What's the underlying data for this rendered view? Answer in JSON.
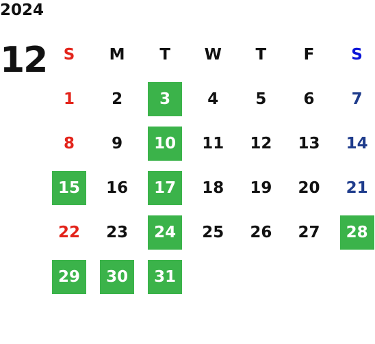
{
  "year": "2024",
  "month": "12",
  "weekdays": [
    "S",
    "M",
    "T",
    "W",
    "T",
    "F",
    "S"
  ],
  "weeks": [
    [
      {
        "day": 1,
        "highlight": false
      },
      {
        "day": 2,
        "highlight": false
      },
      {
        "day": 3,
        "highlight": true
      },
      {
        "day": 4,
        "highlight": false
      },
      {
        "day": 5,
        "highlight": false
      },
      {
        "day": 6,
        "highlight": false
      },
      {
        "day": 7,
        "highlight": false
      }
    ],
    [
      {
        "day": 8,
        "highlight": false
      },
      {
        "day": 9,
        "highlight": false
      },
      {
        "day": 10,
        "highlight": true
      },
      {
        "day": 11,
        "highlight": false
      },
      {
        "day": 12,
        "highlight": false
      },
      {
        "day": 13,
        "highlight": false
      },
      {
        "day": 14,
        "highlight": false
      }
    ],
    [
      {
        "day": 15,
        "highlight": true
      },
      {
        "day": 16,
        "highlight": false
      },
      {
        "day": 17,
        "highlight": true
      },
      {
        "day": 18,
        "highlight": false
      },
      {
        "day": 19,
        "highlight": false
      },
      {
        "day": 20,
        "highlight": false
      },
      {
        "day": 21,
        "highlight": false
      }
    ],
    [
      {
        "day": 22,
        "highlight": false
      },
      {
        "day": 23,
        "highlight": false
      },
      {
        "day": 24,
        "highlight": true
      },
      {
        "day": 25,
        "highlight": false
      },
      {
        "day": 26,
        "highlight": false
      },
      {
        "day": 27,
        "highlight": false
      },
      {
        "day": 28,
        "highlight": true
      }
    ],
    [
      {
        "day": 29,
        "highlight": true
      },
      {
        "day": 30,
        "highlight": true
      },
      {
        "day": 31,
        "highlight": true
      }
    ]
  ],
  "colors": {
    "sunday_header": "#e3241b",
    "saturday_header": "#0a14d8",
    "sunday": "#e3241b",
    "saturday": "#1f3c8c",
    "weekday": "#111111",
    "highlight_bg": "#3bb34a",
    "highlight_text": "#ffffff"
  }
}
